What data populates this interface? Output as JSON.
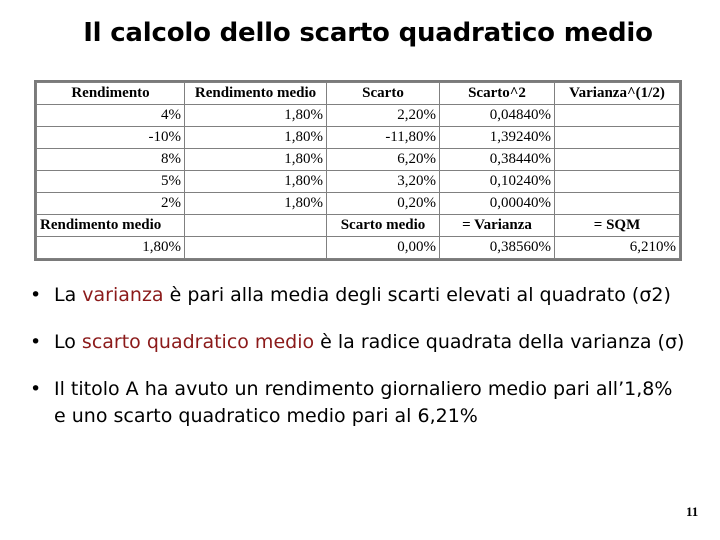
{
  "title": "Il calcolo dello scarto quadratico medio",
  "table": {
    "headers": [
      "Rendimento",
      "Rendimento medio",
      "Scarto",
      "Scarto^2",
      "Varianza^(1/2)"
    ],
    "rows": [
      [
        "4%",
        "1,80%",
        "2,20%",
        "0,04840%",
        ""
      ],
      [
        "-10%",
        "1,80%",
        "-11,80%",
        "1,39240%",
        ""
      ],
      [
        "8%",
        "1,80%",
        "6,20%",
        "0,38440%",
        ""
      ],
      [
        "5%",
        "1,80%",
        "3,20%",
        "0,10240%",
        ""
      ],
      [
        "2%",
        "1,80%",
        "0,20%",
        "0,00040%",
        ""
      ]
    ],
    "summary_labels": [
      "Rendimento medio",
      "",
      "Scarto medio",
      "= Varianza",
      "= SQM"
    ],
    "summary_values": [
      "1,80%",
      "",
      "0,00%",
      "0,38560%",
      "6,210%"
    ]
  },
  "bullets": [
    {
      "pre": "La ",
      "highlight": "varianza",
      "post": " è pari alla media degli scarti elevati al quadrato (",
      "symbol": "σ",
      "sup": "2",
      "end": ")"
    },
    {
      "pre": "Lo ",
      "highlight": "scarto quadratico medio",
      "post": " è la radice quadrata della varianza (",
      "symbol": "σ",
      "end": ")"
    },
    {
      "text": "Il titolo A ha avuto un rendimento giornaliero medio pari all’1,8% e uno scarto quadratico medio pari al 6,21%"
    }
  ],
  "bullet_symbol": "•",
  "page_number": "11",
  "colors": {
    "highlight": "#8b1a1a",
    "table_border": "#808080"
  }
}
